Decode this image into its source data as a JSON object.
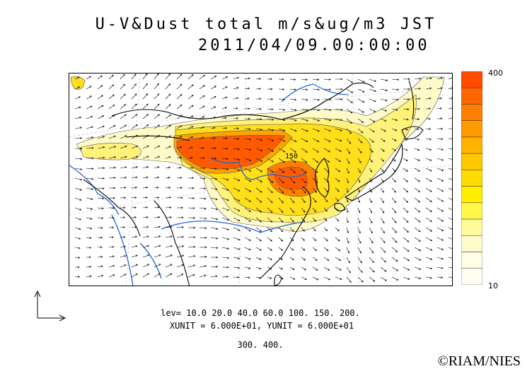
{
  "title": {
    "line1": "U-V&Dust total m/s&ug/m3 JST",
    "line2": "2011/04/09.00:00:00"
  },
  "colorbar": {
    "max_label": "400",
    "min_label": "10",
    "colors": [
      "#ff4a00",
      "#ff6600",
      "#ff8000",
      "#ff9a00",
      "#ffb300",
      "#ffc800",
      "#ffdc00",
      "#ffee00",
      "#fff84a",
      "#fffa9a",
      "#fffccc",
      "#fffde6",
      "#fffef2"
    ]
  },
  "levels": {
    "line1": "lev= 10.0 20.0 40.0 60.0 100. 150. 200.",
    "line2": "300. 400."
  },
  "units_text": "XUNIT = 6.000E+01, YUNIT = 6.000E+01",
  "contour_label": "150",
  "credit": "©RIAM/NIES",
  "colors": {
    "coast": "#000000",
    "river": "#1e64dc",
    "vector": "#000000"
  }
}
